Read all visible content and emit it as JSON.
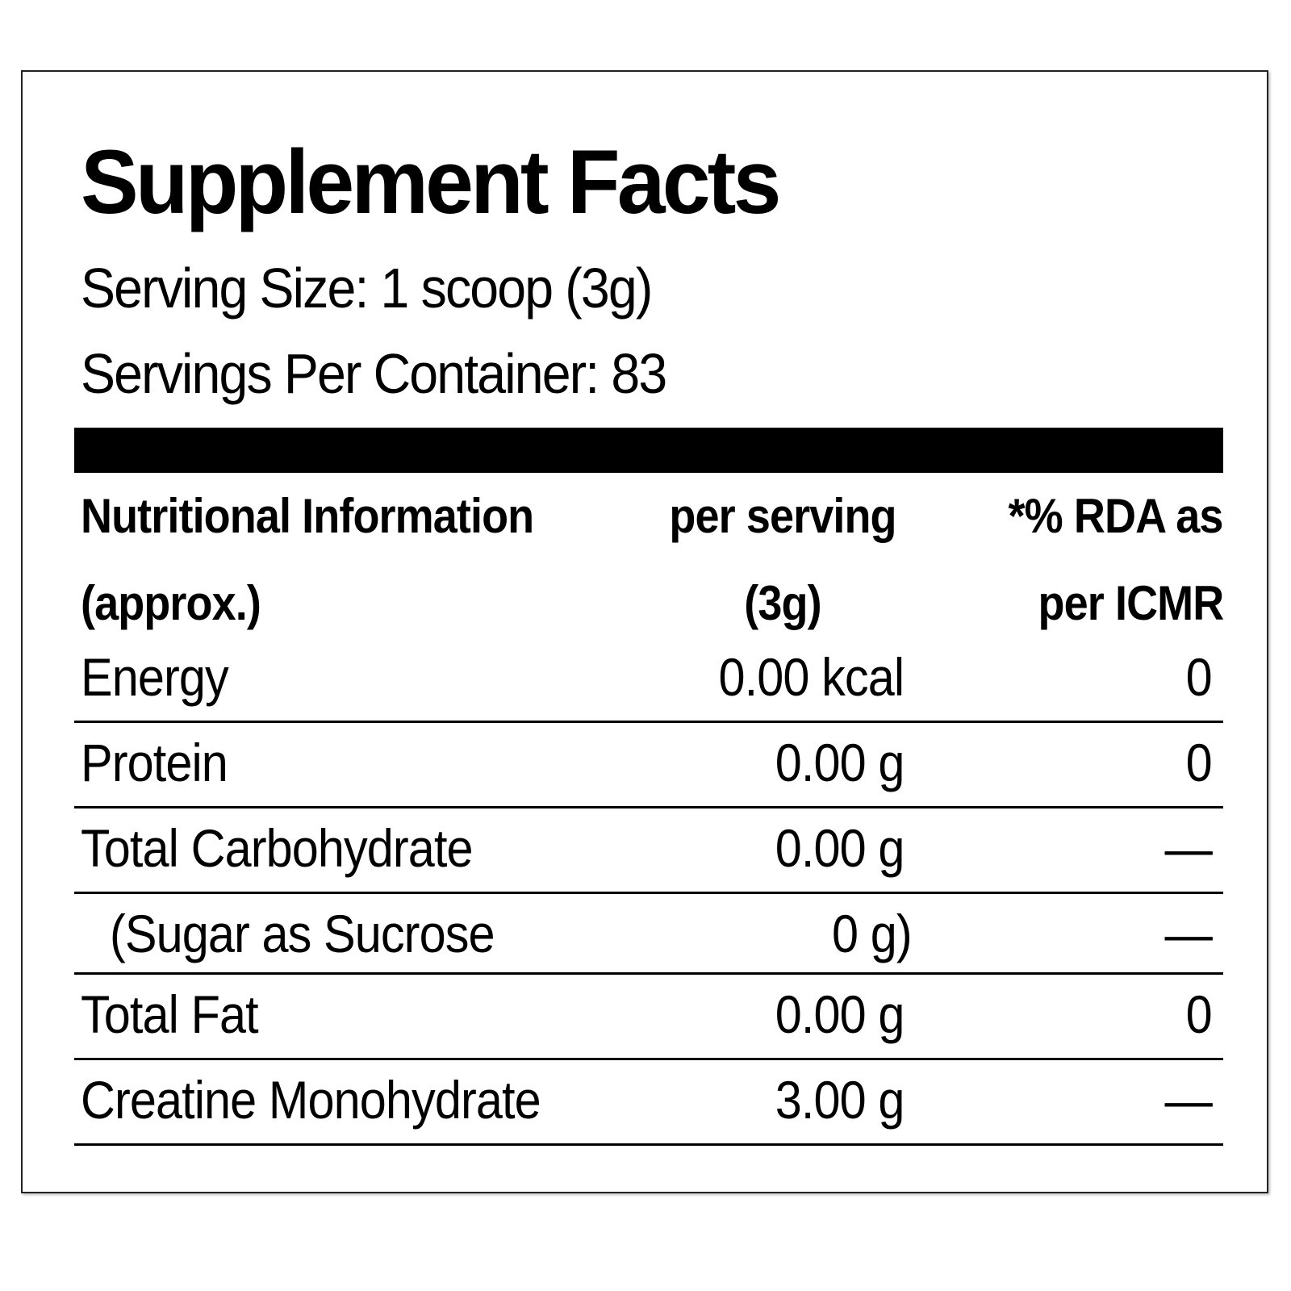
{
  "panel": {
    "title": "Supplement Facts",
    "serving_size": "Serving Size: 1 scoop (3g)",
    "servings_per_container": "Servings Per Container: 83"
  },
  "table": {
    "header": {
      "col1_line1": "Nutritional  Information",
      "col1_line2": "(approx.)",
      "col2_line1": "per serving",
      "col2_line2": "(3g)",
      "col3_line1": "*% RDA as",
      "col3_line2": "per ICMR"
    },
    "rows": [
      {
        "name": "Energy",
        "amount": "0.00  kcal",
        "rda": "0"
      },
      {
        "name": "Protein",
        "amount": "0.00 g",
        "rda": "0"
      },
      {
        "name": "Total  Carbohydrate",
        "amount": "0.00 g",
        "rda": "—"
      },
      {
        "name": "(Sugar as Sucrose",
        "amount": "0 g)",
        "rda": "—"
      },
      {
        "name": "Total Fat",
        "amount": "0.00 g",
        "rda": "0"
      },
      {
        "name": "Creatine  Monohydrate",
        "amount": "3.00 g",
        "rda": "—"
      }
    ]
  }
}
